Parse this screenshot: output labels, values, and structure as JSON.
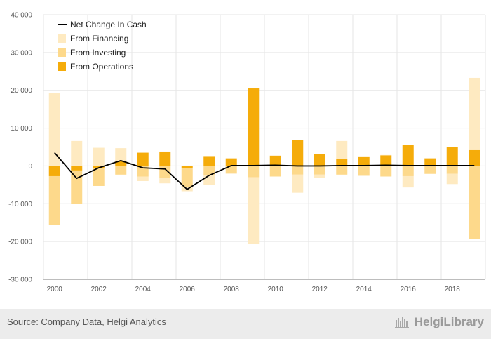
{
  "chart_data": {
    "type": "bar",
    "stacked": true,
    "x": [
      "2000",
      "2001",
      "2002",
      "2003",
      "2004",
      "2005",
      "2006",
      "2007",
      "2008",
      "2009",
      "2010",
      "2011",
      "2012",
      "2013",
      "2014",
      "2015",
      "2016",
      "2017",
      "2018",
      "2019"
    ],
    "x_tick_labels": [
      "2000",
      "2002",
      "2004",
      "2006",
      "2008",
      "2010",
      "2012",
      "2014",
      "2016",
      "2018"
    ],
    "y_tick_labels": [
      "40 000",
      "30 000",
      "20 000",
      "10 000",
      "0",
      "-10 000",
      "-20 000",
      "-30 000"
    ],
    "ylim": [
      -30000,
      40000
    ],
    "grid": true,
    "legend_position": "top-left",
    "series": [
      {
        "name": "From Operations",
        "kind": "bar",
        "color": "#f5ac0a",
        "values": [
          -2700,
          -1200,
          -600,
          1300,
          3500,
          3800,
          -500,
          2600,
          2000,
          20500,
          2700,
          6800,
          3100,
          1800,
          2500,
          2800,
          5500,
          2000,
          5000,
          4200
        ]
      },
      {
        "name": "From Investing",
        "kind": "bar",
        "color": "#fdd98b",
        "values": [
          -13000,
          -8800,
          -4700,
          -2300,
          -2800,
          -3100,
          -5200,
          -2500,
          -2000,
          -3000,
          -2800,
          -2300,
          -2300,
          -2300,
          -2600,
          -2800,
          -2700,
          -2100,
          -2100,
          -19300
        ]
      },
      {
        "name": "From Financing",
        "kind": "bar",
        "color": "#feeac1",
        "values": [
          19200,
          6600,
          4800,
          3400,
          -1200,
          -1500,
          -1000,
          -2600,
          -100,
          -17600,
          100,
          -4800,
          -900,
          4800,
          100,
          100,
          -3000,
          100,
          -2700,
          19100
        ]
      },
      {
        "name": "Net Change In Cash",
        "kind": "line",
        "color": "#000000",
        "values": [
          3500,
          -3300,
          -500,
          1400,
          -500,
          -800,
          -6200,
          -2500,
          100,
          100,
          200,
          0,
          0,
          100,
          100,
          200,
          100,
          100,
          100,
          100
        ]
      }
    ]
  },
  "footer": {
    "source": "Source: Company Data, Helgi Analytics",
    "brand": "HelgiLibrary"
  }
}
